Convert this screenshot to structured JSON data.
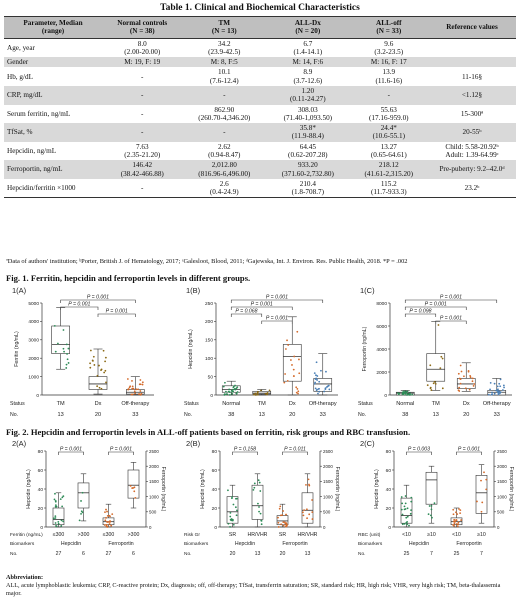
{
  "table": {
    "title": "Table 1. Clinical and Biochemical Characteristics",
    "headers": [
      {
        "l1": "Parameter, Median",
        "l2": "(range)"
      },
      {
        "l1": "Normal controls",
        "l2": "(N = 38)"
      },
      {
        "l1": "TM",
        "l2": "(N = 13)"
      },
      {
        "l1": "ALL-Dx",
        "l2": "(N = 20)"
      },
      {
        "l1": "ALL-off",
        "l2": "(N = 33)"
      },
      {
        "l1": "Reference values",
        "l2": ""
      }
    ],
    "rows": [
      {
        "p": "Age, year",
        "c": [
          [
            "8.0",
            "(2.00-20.00)"
          ],
          [
            "34.2",
            "(23.9-42.5)"
          ],
          [
            "6.7",
            "(1.4-14.1)"
          ],
          [
            "9.6",
            "(3.2-23.5)"
          ]
        ],
        "r": [
          ""
        ]
      },
      {
        "p": "Gender",
        "c": [
          [
            "M: 19, F: 19"
          ],
          [
            "M: 8, F:5"
          ],
          [
            "M: 14, F:6"
          ],
          [
            "M: 16, F: 17"
          ]
        ],
        "r": [
          ""
        ]
      },
      {
        "p": "Hb, g/dL",
        "c": [
          [
            "-"
          ],
          [
            "10.1",
            "(7.6-12.4)"
          ],
          [
            "8.9",
            "(3.7-12.6)"
          ],
          [
            "13.9",
            "(11.6-16)"
          ]
        ],
        "r": [
          "11-16§"
        ]
      },
      {
        "p": "CRP, mg/dL",
        "c": [
          [
            "-"
          ],
          [
            "-"
          ],
          [
            "1.20",
            "(0.11-24.27)"
          ],
          [
            "-"
          ]
        ],
        "r": [
          "<1.12§"
        ]
      },
      {
        "p": "Serum ferritin, ng/mL",
        "c": [
          [
            "-"
          ],
          [
            "862.90",
            "(260.70-4,346.20)"
          ],
          [
            "308.03",
            "(71.40-1,093.50)"
          ],
          [
            "55.63",
            "(17.16-959.0)"
          ]
        ],
        "r": [
          "15-300ª"
        ]
      },
      {
        "p": "TfSat, %",
        "c": [
          [
            "-"
          ],
          [
            "-"
          ],
          [
            "35.8*",
            "(11.9-88.4)"
          ],
          [
            "24.4*",
            "(10.6-55.1)"
          ]
        ],
        "r": [
          "20-55ᵇ"
        ]
      },
      {
        "p": "Hepcidin, ng/mL",
        "c": [
          [
            "7.63",
            "(2.35-21.20)"
          ],
          [
            "2.62",
            "(0.94-8.47)"
          ],
          [
            "64.45",
            "(0.62-207.28)"
          ],
          [
            "13.27",
            "(0.65-64.61)"
          ]
        ],
        "r": [
          "Child: 5.58-20.92ᵇ",
          "Adult: 1.39-64.99ᶜ"
        ]
      },
      {
        "p": "Ferroportin, ng/mL",
        "c": [
          [
            "146.42",
            "(38.42-466.88)"
          ],
          [
            "2,012.80",
            "(816.96-6,496.00)"
          ],
          [
            "933.20",
            "(371.60-2,732.80)"
          ],
          [
            "218.12",
            "(41.61-2,315.20)"
          ]
        ],
        "r": [
          "Pre-puberty: 9.2–42.0ᵈ"
        ]
      },
      {
        "p": "Hepcidin/ferritin ×1000",
        "c": [
          [
            "-"
          ],
          [
            "2.6",
            "(0.4-24.9)"
          ],
          [
            "210.4",
            "(1.8-708.7)"
          ],
          [
            "115.2",
            "(11.7-933.3)"
          ]
        ],
        "r": [
          "23.2ᵇ"
        ]
      }
    ],
    "footnote": "ªData of authors' institution; ᵇPorter, British J. of Hematology, 2017; ᶜGalesloot, Blood, 2011; ᵈGajewska, Int. J. Environ. Res. Public Health, 2018. *P = .002"
  },
  "fig1": {
    "title": "Fig. 1. Ferritin, hepcidin and ferroportin levels in different groups.",
    "panels": [
      {
        "label": "1(A)",
        "ylabel": "Ferritin (ng/mL)",
        "ticks": [
          "5000",
          "4000",
          "3000",
          "2000",
          "1000",
          "0"
        ],
        "groups": [
          "TM",
          "Dx",
          "Off-therapy"
        ],
        "nos": [
          "13",
          "20",
          "33"
        ],
        "sig": [
          "P = 0.001",
          "P = 0.001",
          "P = 0.001"
        ]
      },
      {
        "label": "1(B)",
        "ylabel": "Hepcidin (ng/mL)",
        "ticks": [
          "250",
          "200",
          "150",
          "100",
          "50",
          "0"
        ],
        "groups": [
          "Normal",
          "TM",
          "Dx",
          "Off-therapy"
        ],
        "nos": [
          "38",
          "13",
          "20",
          "33"
        ],
        "sig": [
          "P = 0.068",
          "P = 0.001",
          "P = 0.001",
          "P = 0.001"
        ]
      },
      {
        "label": "1(C)",
        "ylabel": "Ferroportin (ng/mL)",
        "ticks": [
          "8000",
          "6000",
          "4000",
          "2000",
          "0"
        ],
        "groups": [
          "Normal",
          "TM",
          "Dx",
          "Off-therapy"
        ],
        "nos": [
          "38",
          "13",
          "20",
          "33"
        ],
        "sig": [
          "P = 0.098",
          "P = 0.001",
          "P = 0.001",
          "P = 0.001"
        ]
      }
    ],
    "status_label": "Status",
    "no_label": "No."
  },
  "fig2": {
    "title": "Fig. 2. Hepcidin and ferroportin levels in ALL-off patients based on ferritin, risk groups and RBC transfusion.",
    "panels": [
      {
        "label": "2(A)",
        "ylabel": "Hepcidin (ng/mL)",
        "y2label": "Ferroportin (ng/mL)",
        "lticks": [
          "80",
          "60",
          "40",
          "20",
          "0"
        ],
        "rticks": [
          "2500",
          "2000",
          "1500",
          "1000",
          "500",
          "0"
        ],
        "sig": [
          "P = 0.001",
          "P = 0.001"
        ],
        "row1": "Ferritin (ng/mL)",
        "cats": [
          "≤300",
          ">300",
          "≤300",
          ">300"
        ],
        "row2": "Biomarkers",
        "bio": [
          "Hepcidin",
          "Ferroportin"
        ],
        "row3": "No.",
        "nos": [
          "27",
          "6",
          "27",
          "6"
        ]
      },
      {
        "label": "2(B)",
        "ylabel": "Hepcidin (ng/mL)",
        "y2label": "Ferroportin (ng/mL)",
        "lticks": [
          "80",
          "60",
          "40",
          "20",
          "0"
        ],
        "rticks": [
          "2500",
          "2000",
          "1500",
          "1000",
          "500",
          "0"
        ],
        "sig": [
          "P = 0.158",
          "P = 0.011"
        ],
        "row1": "Risk Gr",
        "cats": [
          "SR",
          "HR/VHR",
          "SR",
          "HR/VHR"
        ],
        "row2": "Biomarkers",
        "bio": [
          "Hepcidin",
          "Ferroportin"
        ],
        "row3": "No.",
        "nos": [
          "20",
          "13",
          "20",
          "13"
        ]
      },
      {
        "label": "2(C)",
        "ylabel": "Hepcidin (ng/mL)",
        "y2label": "Ferroportin (ng/mL)",
        "lticks": [
          "80",
          "60",
          "40",
          "20",
          "0"
        ],
        "rticks": [
          "2500",
          "2000",
          "1500",
          "1000",
          "500",
          "0"
        ],
        "sig": [
          "P = 0.003",
          "P = 0.001"
        ],
        "row1": "RBC (unit)",
        "cats": [
          "<10",
          "≥10",
          "<10",
          "≥10"
        ],
        "row2": "Biomarkers",
        "bio": [
          "Hepcidin",
          "Ferroportin"
        ],
        "row3": "No.",
        "nos": [
          "25",
          "7",
          "25",
          "7"
        ]
      }
    ]
  },
  "abbreviation": {
    "title": "Abbreviation:",
    "text": "ALL, acute lymphoblastic leukemia; CRP, C-reactive protein; Dx, diagnosis; off, off-therapy; TfSat, transferrin saturation; SR, standard risk; HR, high risk; VHR, very high risk; TM, beta-thalassemia major."
  },
  "colors": {
    "header_bg": "#bfbfbf",
    "alt_row": "#d9d9d9",
    "dots": [
      "#2e8b57",
      "#8b6914",
      "#d46a2a",
      "#4a7fb5"
    ]
  }
}
